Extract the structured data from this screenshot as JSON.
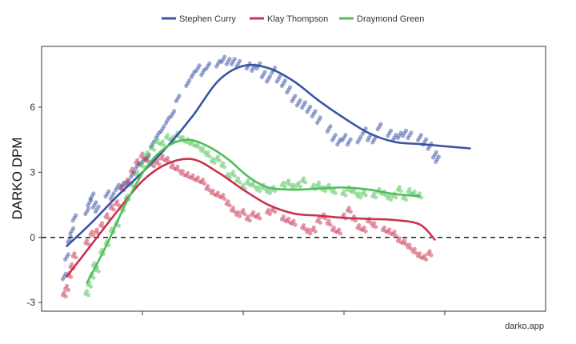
{
  "chart_data": {
    "type": "scatter",
    "title": "",
    "xlabel": "",
    "ylabel": "DARKO DPM",
    "xlim": [
      0,
      100
    ],
    "ylim": [
      -3.4,
      8.8
    ],
    "yticks": [
      -3,
      0,
      3,
      6
    ],
    "ytick_labels": [
      "-3",
      "0",
      "3",
      "6"
    ],
    "xticks": [
      20,
      40,
      60,
      80
    ],
    "reference_line": {
      "y": 0,
      "style": "dashed"
    },
    "legend_position": "top-center",
    "credit": "darko.app",
    "series": [
      {
        "name": "Stephen Curry",
        "color": "#3b54a4",
        "trend_x": [
          5,
          10,
          15,
          20,
          25,
          30,
          35,
          40,
          45,
          50,
          55,
          60,
          65,
          70,
          75,
          80,
          85
        ],
        "trend_y": [
          -0.4,
          0.7,
          1.9,
          3.0,
          4.2,
          5.6,
          7.2,
          7.9,
          7.8,
          7.2,
          6.3,
          5.5,
          4.8,
          4.4,
          4.3,
          4.2,
          4.1
        ],
        "points": [
          [
            4.5,
            -1.8
          ],
          [
            5,
            -0.9
          ],
          [
            5.5,
            -0.1
          ],
          [
            6,
            0.3
          ],
          [
            6.5,
            0.9
          ],
          [
            9,
            1.2
          ],
          [
            9.5,
            1.6
          ],
          [
            10,
            1.9
          ],
          [
            10.5,
            1.5
          ],
          [
            11,
            1.3
          ],
          [
            13,
            2.0
          ],
          [
            14,
            1.9
          ],
          [
            15,
            2.3
          ],
          [
            16,
            2.4
          ],
          [
            17,
            2.5
          ],
          [
            18,
            2.9
          ],
          [
            19,
            3.3
          ],
          [
            20,
            3.5
          ],
          [
            21,
            3.7
          ],
          [
            22,
            4.3
          ],
          [
            23,
            4.7
          ],
          [
            24,
            5.0
          ],
          [
            25,
            5.4
          ],
          [
            26,
            5.7
          ],
          [
            27,
            6.4
          ],
          [
            29,
            7.1
          ],
          [
            30,
            7.5
          ],
          [
            31,
            7.8
          ],
          [
            32,
            7.6
          ],
          [
            33,
            7.9
          ],
          [
            35,
            8.0
          ],
          [
            36,
            8.2
          ],
          [
            37,
            8.1
          ],
          [
            38,
            8.1
          ],
          [
            39,
            8.0
          ],
          [
            41,
            7.9
          ],
          [
            42,
            7.8
          ],
          [
            43,
            7.9
          ],
          [
            44,
            7.5
          ],
          [
            45,
            7.3
          ],
          [
            46,
            7.7
          ],
          [
            47,
            7.3
          ],
          [
            48,
            7.1
          ],
          [
            49,
            6.8
          ],
          [
            50,
            6.4
          ],
          [
            51,
            6.2
          ],
          [
            52,
            6.1
          ],
          [
            53,
            5.9
          ],
          [
            54,
            5.7
          ],
          [
            55,
            5.4
          ],
          [
            57,
            5.0
          ],
          [
            58,
            4.6
          ],
          [
            59,
            4.4
          ],
          [
            60,
            4.6
          ],
          [
            61,
            4.4
          ],
          [
            63,
            4.5
          ],
          [
            64,
            4.9
          ],
          [
            65,
            4.6
          ],
          [
            66,
            4.5
          ],
          [
            67,
            5.1
          ],
          [
            69,
            4.8
          ],
          [
            70,
            4.6
          ],
          [
            71,
            4.7
          ],
          [
            72,
            4.8
          ],
          [
            73,
            4.7
          ],
          [
            75,
            4.6
          ],
          [
            76,
            4.4
          ],
          [
            77,
            4.2
          ],
          [
            78,
            3.8
          ],
          [
            78.5,
            3.6
          ]
        ]
      },
      {
        "name": "Klay Thompson",
        "color": "#c7344f",
        "trend_x": [
          5,
          10,
          15,
          20,
          25,
          30,
          35,
          40,
          45,
          50,
          55,
          60,
          65,
          70,
          75,
          78
        ],
        "trend_y": [
          -1.8,
          -0.3,
          1.2,
          2.6,
          3.4,
          3.6,
          3.0,
          2.2,
          1.5,
          1.1,
          1.0,
          0.9,
          0.85,
          0.8,
          0.6,
          -0.1
        ],
        "points": [
          [
            4.5,
            -2.6
          ],
          [
            5,
            -2.3
          ],
          [
            5.5,
            -1.7
          ],
          [
            6,
            -1.3
          ],
          [
            6.5,
            -0.8
          ],
          [
            9,
            -0.2
          ],
          [
            10,
            0.2
          ],
          [
            11,
            0.3
          ],
          [
            12,
            0.6
          ],
          [
            13,
            1.0
          ],
          [
            14,
            1.4
          ],
          [
            15,
            1.6
          ],
          [
            16,
            2.3
          ],
          [
            17,
            2.6
          ],
          [
            18,
            3.1
          ],
          [
            19,
            3.5
          ],
          [
            20,
            3.8
          ],
          [
            21,
            3.6
          ],
          [
            22,
            3.4
          ],
          [
            23,
            3.5
          ],
          [
            24,
            3.7
          ],
          [
            25,
            3.6
          ],
          [
            26,
            3.3
          ],
          [
            27,
            3.2
          ],
          [
            28,
            3.0
          ],
          [
            29,
            2.9
          ],
          [
            30,
            2.8
          ],
          [
            31,
            2.7
          ],
          [
            32,
            2.6
          ],
          [
            33,
            2.3
          ],
          [
            34,
            2.1
          ],
          [
            35,
            2.0
          ],
          [
            36,
            1.9
          ],
          [
            37,
            1.6
          ],
          [
            38,
            1.3
          ],
          [
            39,
            1.1
          ],
          [
            40,
            1.2
          ],
          [
            41,
            0.9
          ],
          [
            42,
            1.1
          ],
          [
            43,
            1.0
          ],
          [
            45,
            1.2
          ],
          [
            46,
            1.3
          ],
          [
            48,
            0.9
          ],
          [
            49,
            0.8
          ],
          [
            50,
            0.7
          ],
          [
            52,
            0.5
          ],
          [
            53,
            0.3
          ],
          [
            54,
            0.4
          ],
          [
            55,
            0.8
          ],
          [
            56,
            1.0
          ],
          [
            57,
            0.7
          ],
          [
            58,
            0.4
          ],
          [
            59,
            0.3
          ],
          [
            60,
            1.0
          ],
          [
            61,
            1.3
          ],
          [
            62,
            0.9
          ],
          [
            63,
            0.5
          ],
          [
            64,
            0.4
          ],
          [
            65,
            0.8
          ],
          [
            66,
            0.6
          ],
          [
            68,
            0.4
          ],
          [
            69,
            0.3
          ],
          [
            70,
            0.2
          ],
          [
            71,
            -0.1
          ],
          [
            72,
            -0.2
          ],
          [
            73,
            -0.4
          ],
          [
            74,
            -0.6
          ],
          [
            75,
            -0.8
          ],
          [
            76,
            -0.9
          ],
          [
            77,
            -0.7
          ]
        ]
      },
      {
        "name": "Draymond Green",
        "color": "#4fbf5a",
        "trend_x": [
          9,
          13,
          17,
          21,
          25,
          29,
          33,
          37,
          41,
          45,
          50,
          55,
          60,
          65,
          70,
          75
        ],
        "trend_y": [
          -2.1,
          -0.3,
          1.7,
          3.3,
          4.2,
          4.5,
          4.2,
          3.6,
          2.8,
          2.3,
          2.2,
          2.25,
          2.3,
          2.2,
          2.0,
          1.9
        ],
        "points": [
          [
            9,
            -2.6
          ],
          [
            9.5,
            -2.2
          ],
          [
            10,
            -1.8
          ],
          [
            10.5,
            -1.3
          ],
          [
            11,
            -1.5
          ],
          [
            12,
            -0.7
          ],
          [
            13,
            -0.3
          ],
          [
            14,
            0.3
          ],
          [
            15,
            0.6
          ],
          [
            16,
            1.3
          ],
          [
            17,
            1.8
          ],
          [
            18,
            2.4
          ],
          [
            19,
            2.9
          ],
          [
            20,
            3.3
          ],
          [
            21,
            3.8
          ],
          [
            22,
            4.1
          ],
          [
            23,
            4.4
          ],
          [
            24,
            4.3
          ],
          [
            25,
            4.6
          ],
          [
            26,
            4.5
          ],
          [
            27,
            4.7
          ],
          [
            28,
            4.5
          ],
          [
            29,
            4.4
          ],
          [
            30,
            4.3
          ],
          [
            31,
            4.2
          ],
          [
            32,
            4.0
          ],
          [
            33,
            3.8
          ],
          [
            34,
            3.5
          ],
          [
            35,
            3.6
          ],
          [
            36,
            3.3
          ],
          [
            37,
            2.8
          ],
          [
            38,
            2.9
          ],
          [
            39,
            2.6
          ],
          [
            40,
            2.3
          ],
          [
            41,
            2.5
          ],
          [
            42,
            2.4
          ],
          [
            43,
            2.2
          ],
          [
            44,
            2.3
          ],
          [
            45,
            2.1
          ],
          [
            46,
            2.2
          ],
          [
            48,
            2.4
          ],
          [
            49,
            2.5
          ],
          [
            50,
            2.3
          ],
          [
            51,
            2.4
          ],
          [
            52,
            2.6
          ],
          [
            54,
            2.3
          ],
          [
            55,
            2.4
          ],
          [
            56,
            2.2
          ],
          [
            57,
            2.3
          ],
          [
            58,
            2.1
          ],
          [
            60,
            2.0
          ],
          [
            61,
            2.2
          ],
          [
            62,
            2.1
          ],
          [
            63,
            1.9
          ],
          [
            64,
            2.0
          ],
          [
            66,
            1.9
          ],
          [
            67,
            2.1
          ],
          [
            68,
            2.0
          ],
          [
            69,
            1.8
          ],
          [
            70,
            1.9
          ],
          [
            71,
            2.2
          ],
          [
            72,
            1.8
          ],
          [
            73,
            2.1
          ],
          [
            74,
            2.0
          ],
          [
            75,
            1.9
          ]
        ]
      }
    ]
  }
}
